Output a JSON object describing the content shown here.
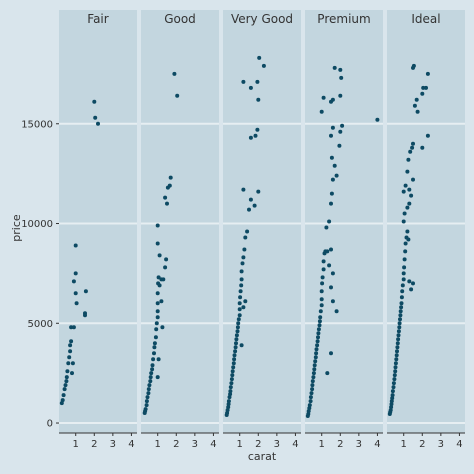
{
  "chart_data": {
    "type": "scatter",
    "xlabel": "carat",
    "ylabel": "price",
    "x_ticks": [
      1,
      2,
      3,
      4
    ],
    "y_ticks": [
      0,
      5000,
      10000,
      15000
    ],
    "xlim": [
      0.1,
      4.3
    ],
    "ylim": [
      -500,
      19800
    ],
    "colors": {
      "point": "#0d4a63",
      "panel": "#c3d6df",
      "strip": "#c3d6df",
      "grid": "#e6eef2",
      "background": "#d9e5ec"
    },
    "facets": [
      {
        "label": "Fair",
        "points": [
          [
            0.25,
            1000
          ],
          [
            0.3,
            1150
          ],
          [
            0.35,
            1400
          ],
          [
            0.4,
            1700
          ],
          [
            0.45,
            1900
          ],
          [
            0.5,
            2100
          ],
          [
            0.52,
            2300
          ],
          [
            0.55,
            2600
          ],
          [
            0.6,
            3000
          ],
          [
            0.65,
            3300
          ],
          [
            0.7,
            3600
          ],
          [
            0.7,
            3900
          ],
          [
            0.75,
            4100
          ],
          [
            0.75,
            4800
          ],
          [
            0.9,
            4800
          ],
          [
            0.85,
            3000
          ],
          [
            0.8,
            2500
          ],
          [
            0.9,
            7100
          ],
          [
            1.0,
            7500
          ],
          [
            1.0,
            8900
          ],
          [
            1.0,
            6500
          ],
          [
            1.05,
            6000
          ],
          [
            1.5,
            5500
          ],
          [
            1.55,
            6600
          ],
          [
            1.5,
            5400
          ],
          [
            2.0,
            16100
          ],
          [
            2.05,
            15300
          ],
          [
            2.2,
            15000
          ]
        ]
      },
      {
        "label": "Good",
        "points": [
          [
            0.3,
            500
          ],
          [
            0.32,
            600
          ],
          [
            0.35,
            700
          ],
          [
            0.4,
            900
          ],
          [
            0.42,
            1100
          ],
          [
            0.45,
            1300
          ],
          [
            0.5,
            1500
          ],
          [
            0.52,
            1700
          ],
          [
            0.55,
            1900
          ],
          [
            0.6,
            2100
          ],
          [
            0.62,
            2300
          ],
          [
            0.65,
            2500
          ],
          [
            0.7,
            2700
          ],
          [
            0.72,
            2900
          ],
          [
            0.75,
            3200
          ],
          [
            0.8,
            3500
          ],
          [
            0.82,
            3800
          ],
          [
            0.85,
            4000
          ],
          [
            0.9,
            4300
          ],
          [
            0.92,
            4700
          ],
          [
            0.95,
            5000
          ],
          [
            1.0,
            5300
          ],
          [
            1.0,
            5600
          ],
          [
            1.0,
            6000
          ],
          [
            1.0,
            6500
          ],
          [
            1.02,
            7000
          ],
          [
            1.05,
            7300
          ],
          [
            1.1,
            6900
          ],
          [
            1.2,
            7200
          ],
          [
            1.2,
            6100
          ],
          [
            1.25,
            4800
          ],
          [
            1.3,
            7200
          ],
          [
            1.4,
            7800
          ],
          [
            1.45,
            8200
          ],
          [
            1.1,
            8400
          ],
          [
            1.0,
            9000
          ],
          [
            1.0,
            9900
          ],
          [
            1.05,
            3200
          ],
          [
            1.0,
            2300
          ],
          [
            1.5,
            11000
          ],
          [
            1.4,
            11300
          ],
          [
            1.55,
            11800
          ],
          [
            1.7,
            12300
          ],
          [
            1.65,
            11900
          ],
          [
            1.9,
            17500
          ],
          [
            2.05,
            16400
          ]
        ]
      },
      {
        "label": "Very Good",
        "points": [
          [
            0.3,
            400
          ],
          [
            0.32,
            500
          ],
          [
            0.35,
            650
          ],
          [
            0.38,
            800
          ],
          [
            0.4,
            950
          ],
          [
            0.42,
            1100
          ],
          [
            0.45,
            1300
          ],
          [
            0.48,
            1450
          ],
          [
            0.5,
            1600
          ],
          [
            0.52,
            1800
          ],
          [
            0.55,
            2000
          ],
          [
            0.58,
            2200
          ],
          [
            0.6,
            2400
          ],
          [
            0.62,
            2600
          ],
          [
            0.65,
            2800
          ],
          [
            0.68,
            3000
          ],
          [
            0.7,
            3200
          ],
          [
            0.72,
            3400
          ],
          [
            0.75,
            3600
          ],
          [
            0.78,
            3800
          ],
          [
            0.8,
            4000
          ],
          [
            0.82,
            4200
          ],
          [
            0.85,
            4400
          ],
          [
            0.88,
            4600
          ],
          [
            0.9,
            4800
          ],
          [
            0.92,
            5000
          ],
          [
            0.95,
            5200
          ],
          [
            1.0,
            5400
          ],
          [
            1.0,
            5700
          ],
          [
            1.0,
            6000
          ],
          [
            1.02,
            6300
          ],
          [
            1.05,
            6600
          ],
          [
            1.08,
            6900
          ],
          [
            1.1,
            7200
          ],
          [
            1.1,
            7600
          ],
          [
            1.15,
            8000
          ],
          [
            1.2,
            8300
          ],
          [
            1.25,
            8700
          ],
          [
            1.3,
            9300
          ],
          [
            1.4,
            9600
          ],
          [
            1.2,
            5800
          ],
          [
            1.3,
            6100
          ],
          [
            1.1,
            3900
          ],
          [
            1.5,
            10700
          ],
          [
            1.6,
            11200
          ],
          [
            1.2,
            11700
          ],
          [
            2.0,
            11600
          ],
          [
            1.8,
            10900
          ],
          [
            1.6,
            14300
          ],
          [
            1.85,
            14400
          ],
          [
            1.95,
            14700
          ],
          [
            2.0,
            16200
          ],
          [
            1.6,
            16800
          ],
          [
            1.95,
            17100
          ],
          [
            1.2,
            17100
          ],
          [
            2.05,
            18300
          ],
          [
            2.3,
            17900
          ]
        ]
      },
      {
        "label": "Premium",
        "points": [
          [
            0.25,
            350
          ],
          [
            0.28,
            450
          ],
          [
            0.3,
            600
          ],
          [
            0.33,
            750
          ],
          [
            0.36,
            900
          ],
          [
            0.4,
            1100
          ],
          [
            0.42,
            1300
          ],
          [
            0.45,
            1500
          ],
          [
            0.48,
            1700
          ],
          [
            0.5,
            1900
          ],
          [
            0.52,
            2100
          ],
          [
            0.55,
            2300
          ],
          [
            0.58,
            2500
          ],
          [
            0.6,
            2700
          ],
          [
            0.62,
            2900
          ],
          [
            0.65,
            3100
          ],
          [
            0.68,
            3300
          ],
          [
            0.7,
            3500
          ],
          [
            0.72,
            3700
          ],
          [
            0.75,
            3900
          ],
          [
            0.78,
            4100
          ],
          [
            0.8,
            4300
          ],
          [
            0.82,
            4500
          ],
          [
            0.85,
            4700
          ],
          [
            0.88,
            4900
          ],
          [
            0.9,
            5100
          ],
          [
            0.92,
            5300
          ],
          [
            0.95,
            5600
          ],
          [
            1.0,
            5900
          ],
          [
            1.0,
            6200
          ],
          [
            1.0,
            6600
          ],
          [
            1.02,
            7000
          ],
          [
            1.05,
            7300
          ],
          [
            1.1,
            7700
          ],
          [
            1.1,
            8100
          ],
          [
            1.15,
            8500
          ],
          [
            1.2,
            8600
          ],
          [
            1.3,
            8600
          ],
          [
            1.5,
            8700
          ],
          [
            1.4,
            7900
          ],
          [
            1.6,
            7500
          ],
          [
            1.5,
            6800
          ],
          [
            1.6,
            6100
          ],
          [
            1.8,
            5600
          ],
          [
            1.5,
            3500
          ],
          [
            1.3,
            2500
          ],
          [
            1.25,
            9800
          ],
          [
            1.4,
            10100
          ],
          [
            1.5,
            11000
          ],
          [
            1.55,
            11500
          ],
          [
            1.6,
            12200
          ],
          [
            1.7,
            12900
          ],
          [
            1.55,
            13300
          ],
          [
            1.8,
            12400
          ],
          [
            1.95,
            13900
          ],
          [
            1.5,
            14400
          ],
          [
            1.6,
            14800
          ],
          [
            2.0,
            14600
          ],
          [
            2.1,
            14900
          ],
          [
            1.0,
            15600
          ],
          [
            1.1,
            16300
          ],
          [
            1.5,
            16100
          ],
          [
            1.6,
            16200
          ],
          [
            2.0,
            16400
          ],
          [
            1.7,
            17800
          ],
          [
            2.0,
            17700
          ],
          [
            2.05,
            17300
          ],
          [
            4.0,
            15200
          ]
        ]
      },
      {
        "label": "Ideal",
        "points": [
          [
            0.25,
            450
          ],
          [
            0.27,
            550
          ],
          [
            0.3,
            650
          ],
          [
            0.32,
            800
          ],
          [
            0.34,
            950
          ],
          [
            0.36,
            1100
          ],
          [
            0.38,
            1250
          ],
          [
            0.4,
            1400
          ],
          [
            0.42,
            1600
          ],
          [
            0.45,
            1800
          ],
          [
            0.47,
            2000
          ],
          [
            0.5,
            2200
          ],
          [
            0.52,
            2400
          ],
          [
            0.54,
            2600
          ],
          [
            0.56,
            2800
          ],
          [
            0.58,
            3000
          ],
          [
            0.6,
            3200
          ],
          [
            0.62,
            3400
          ],
          [
            0.64,
            3600
          ],
          [
            0.66,
            3800
          ],
          [
            0.68,
            4000
          ],
          [
            0.7,
            4200
          ],
          [
            0.72,
            4400
          ],
          [
            0.74,
            4600
          ],
          [
            0.76,
            4800
          ],
          [
            0.78,
            5000
          ],
          [
            0.8,
            5200
          ],
          [
            0.82,
            5400
          ],
          [
            0.84,
            5600
          ],
          [
            0.86,
            5800
          ],
          [
            0.88,
            6000
          ],
          [
            0.9,
            6300
          ],
          [
            0.92,
            6600
          ],
          [
            0.95,
            6900
          ],
          [
            1.0,
            7200
          ],
          [
            1.0,
            7500
          ],
          [
            1.02,
            7800
          ],
          [
            1.05,
            8200
          ],
          [
            1.08,
            8600
          ],
          [
            1.1,
            9000
          ],
          [
            1.15,
            9300
          ],
          [
            1.2,
            9600
          ],
          [
            1.25,
            9200
          ],
          [
            1.3,
            7100
          ],
          [
            1.5,
            7000
          ],
          [
            1.4,
            6700
          ],
          [
            1.0,
            10100
          ],
          [
            1.05,
            10500
          ],
          [
            1.2,
            10800
          ],
          [
            1.3,
            11000
          ],
          [
            1.0,
            11600
          ],
          [
            1.1,
            11900
          ],
          [
            1.3,
            11700
          ],
          [
            1.4,
            11400
          ],
          [
            1.5,
            12200
          ],
          [
            1.2,
            12600
          ],
          [
            1.25,
            13200
          ],
          [
            1.35,
            13600
          ],
          [
            1.5,
            14000
          ],
          [
            1.45,
            13800
          ],
          [
            2.0,
            13800
          ],
          [
            2.3,
            14400
          ],
          [
            1.75,
            15600
          ],
          [
            1.6,
            15900
          ],
          [
            1.7,
            16200
          ],
          [
            2.0,
            16500
          ],
          [
            2.05,
            16800
          ],
          [
            2.2,
            16800
          ],
          [
            2.3,
            17500
          ],
          [
            1.5,
            17800
          ],
          [
            1.55,
            17900
          ]
        ]
      }
    ]
  }
}
